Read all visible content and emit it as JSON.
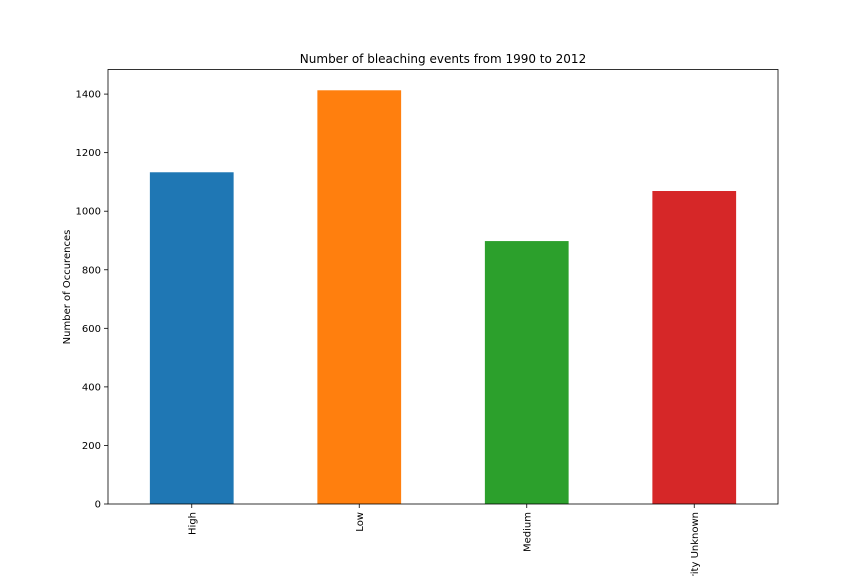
{
  "chart_data": {
    "type": "bar",
    "title": "Number of bleaching events from 1990 to 2012",
    "xlabel": "",
    "ylabel": "Number of Occurences",
    "categories": [
      "High",
      "Low",
      "Medium",
      "Severity Unknown"
    ],
    "values": [
      1133,
      1413,
      898,
      1069
    ],
    "colors": [
      "#1f77b4",
      "#ff7f0e",
      "#2ca02c",
      "#d62728"
    ],
    "ylim": [
      0,
      1484
    ],
    "yticks": [
      0,
      200,
      400,
      600,
      800,
      1000,
      1200,
      1400
    ],
    "grid": false,
    "legend": "none"
  }
}
